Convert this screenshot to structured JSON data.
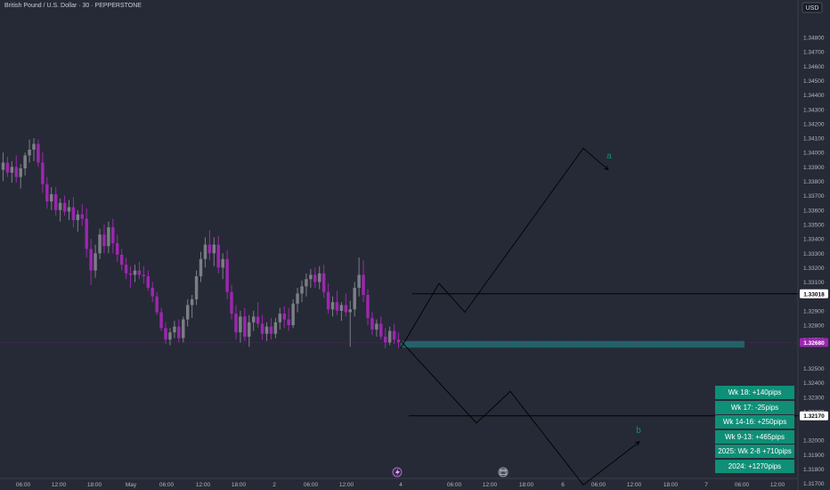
{
  "header": {
    "symbol_title": "British Pound / U.S. Dollar · 30 · PEPPERSTONE"
  },
  "currency_button": {
    "label": "USD"
  },
  "price_axis": {
    "ticks": [
      "1.34800",
      "1.34700",
      "1.34600",
      "1.34500",
      "1.34400",
      "1.34300",
      "1.34200",
      "1.34100",
      "1.34000",
      "1.33900",
      "1.33800",
      "1.33700",
      "1.33600",
      "1.33500",
      "1.33400",
      "1.33300",
      "1.33200",
      "1.33100",
      "1.33000",
      "1.32900",
      "1.32800",
      "1.32700",
      "1.32500",
      "1.32400",
      "1.32300",
      "1.32200",
      "1.32000",
      "1.31900",
      "1.31800",
      "1.31700"
    ],
    "markers": [
      {
        "value": "1.33018",
        "color": "#ffffff",
        "text_color": "#000000"
      },
      {
        "value": "1.32680",
        "color": "#9c27b0",
        "text_color": "#ffffff"
      },
      {
        "value": "1.32170",
        "color": "#ffffff",
        "text_color": "#000000"
      }
    ]
  },
  "time_axis": {
    "labels": [
      "06:00",
      "12:00",
      "18:00",
      "May",
      "06:00",
      "12:00",
      "18:00",
      "2",
      "06:00",
      "12:00",
      "4",
      "06:00",
      "12:00",
      "18:00",
      "6",
      "06:00",
      "12:00",
      "18:00",
      "7",
      "06:00",
      "12:00"
    ]
  },
  "projection_labels": {
    "a": "a",
    "b": "b"
  },
  "stats": [
    "Wk 18: +140pips",
    "Wk 17: -25pips",
    "Wk 14-16: +250pips",
    "Wk 9-13: +465pips",
    "2025: Wk 2-8  +710pips",
    "2024: +1270pips"
  ],
  "colors": {
    "background": "#262a36",
    "bull_candle": "#7c7e86",
    "bear_candle": "#9c27b0",
    "zone": "#1e6f6f",
    "stat_box": "#0f8f77",
    "label_text": "#0f8f77",
    "projection_line": "#000000"
  },
  "icons": [
    "tradingview-bolt-icon",
    "calendar-event-icon"
  ],
  "chart_data": {
    "type": "candlestick",
    "series": "bull/bear candles, 30-minute",
    "ylim": [
      1.3165,
      1.349
    ],
    "last_price": 1.3268,
    "resistance_levels": [
      1.33018,
      1.3217
    ],
    "zone": [
      1.3265,
      1.3269
    ],
    "projection_a": [
      [
        450,
        1.3264
      ],
      [
        493,
        1.3309
      ],
      [
        522,
        1.3289
      ],
      [
        655,
        1.3403
      ],
      [
        683,
        1.3388
      ]
    ],
    "projection_b": [
      [
        450,
        1.3269
      ],
      [
        535,
        1.3212
      ],
      [
        573,
        1.3234
      ],
      [
        655,
        1.3169
      ],
      [
        718,
        1.3199
      ]
    ],
    "candles": [
      [
        1.3388,
        1.34,
        1.338,
        1.3393
      ],
      [
        1.3393,
        1.3397,
        1.3383,
        1.3386
      ],
      [
        1.3386,
        1.3394,
        1.3379,
        1.339
      ],
      [
        1.339,
        1.3398,
        1.3379,
        1.3383
      ],
      [
        1.3383,
        1.3392,
        1.3375,
        1.3389
      ],
      [
        1.3389,
        1.34,
        1.3384,
        1.3398
      ],
      [
        1.3398,
        1.3409,
        1.3393,
        1.3402
      ],
      [
        1.3402,
        1.341,
        1.3394,
        1.3406
      ],
      [
        1.3406,
        1.3409,
        1.339,
        1.3393
      ],
      [
        1.3393,
        1.34,
        1.3372,
        1.3378
      ],
      [
        1.3378,
        1.3383,
        1.3361,
        1.3366
      ],
      [
        1.3366,
        1.3376,
        1.336,
        1.3371
      ],
      [
        1.3371,
        1.3376,
        1.3356,
        1.336
      ],
      [
        1.336,
        1.3368,
        1.3352,
        1.3365
      ],
      [
        1.3365,
        1.337,
        1.3356,
        1.3359
      ],
      [
        1.3359,
        1.3367,
        1.3353,
        1.3362
      ],
      [
        1.3362,
        1.3369,
        1.3348,
        1.3353
      ],
      [
        1.3353,
        1.336,
        1.3345,
        1.3357
      ],
      [
        1.3357,
        1.3364,
        1.3349,
        1.3354
      ],
      [
        1.3354,
        1.3361,
        1.3327,
        1.3333
      ],
      [
        1.3333,
        1.334,
        1.3308,
        1.3318
      ],
      [
        1.3318,
        1.3336,
        1.3313,
        1.333
      ],
      [
        1.333,
        1.3347,
        1.3326,
        1.3343
      ],
      [
        1.3343,
        1.335,
        1.333,
        1.3335
      ],
      [
        1.3335,
        1.3352,
        1.333,
        1.3348
      ],
      [
        1.3348,
        1.3354,
        1.333,
        1.3337
      ],
      [
        1.3337,
        1.3343,
        1.3324,
        1.3329
      ],
      [
        1.3329,
        1.3333,
        1.3318,
        1.3322
      ],
      [
        1.3322,
        1.3327,
        1.3312,
        1.3316
      ],
      [
        1.3316,
        1.3321,
        1.3306,
        1.3315
      ],
      [
        1.3315,
        1.3322,
        1.331,
        1.3318
      ],
      [
        1.3318,
        1.3324,
        1.3312,
        1.3315
      ],
      [
        1.3315,
        1.3321,
        1.3309,
        1.3314
      ],
      [
        1.3314,
        1.3318,
        1.3304,
        1.3306
      ],
      [
        1.3306,
        1.331,
        1.3296,
        1.33
      ],
      [
        1.33,
        1.3303,
        1.3287,
        1.3289
      ],
      [
        1.3289,
        1.3292,
        1.3276,
        1.3278
      ],
      [
        1.3278,
        1.3282,
        1.3267,
        1.327
      ],
      [
        1.327,
        1.3278,
        1.3266,
        1.3275
      ],
      [
        1.3275,
        1.3283,
        1.3271,
        1.3279
      ],
      [
        1.3279,
        1.3284,
        1.3268,
        1.3271
      ],
      [
        1.3271,
        1.3286,
        1.3268,
        1.3284
      ],
      [
        1.3284,
        1.3298,
        1.3279,
        1.3294
      ],
      [
        1.3294,
        1.3301,
        1.3285,
        1.3298
      ],
      [
        1.3298,
        1.3318,
        1.3294,
        1.3314
      ],
      [
        1.3314,
        1.3331,
        1.331,
        1.3326
      ],
      [
        1.3326,
        1.3341,
        1.332,
        1.3336
      ],
      [
        1.3336,
        1.3346,
        1.3325,
        1.333
      ],
      [
        1.333,
        1.3341,
        1.3321,
        1.3336
      ],
      [
        1.3336,
        1.3342,
        1.3316,
        1.332
      ],
      [
        1.332,
        1.333,
        1.3312,
        1.3326
      ],
      [
        1.3326,
        1.3332,
        1.3298,
        1.3303
      ],
      [
        1.3303,
        1.3308,
        1.3284,
        1.3288
      ],
      [
        1.3288,
        1.3294,
        1.327,
        1.3275
      ],
      [
        1.3275,
        1.329,
        1.3268,
        1.3286
      ],
      [
        1.3286,
        1.3292,
        1.3269,
        1.3272
      ],
      [
        1.3272,
        1.3287,
        1.3265,
        1.3282
      ],
      [
        1.3282,
        1.329,
        1.3276,
        1.3286
      ],
      [
        1.3286,
        1.3296,
        1.3278,
        1.3281
      ],
      [
        1.3281,
        1.3287,
        1.327,
        1.3274
      ],
      [
        1.3274,
        1.3282,
        1.3269,
        1.3279
      ],
      [
        1.3279,
        1.3285,
        1.327,
        1.3274
      ],
      [
        1.3274,
        1.3285,
        1.3271,
        1.3282
      ],
      [
        1.3282,
        1.3292,
        1.3277,
        1.3288
      ],
      [
        1.3288,
        1.3293,
        1.3278,
        1.3284
      ],
      [
        1.3284,
        1.3292,
        1.3276,
        1.328
      ],
      [
        1.328,
        1.3298,
        1.3278,
        1.3295
      ],
      [
        1.3295,
        1.3306,
        1.3289,
        1.3302
      ],
      [
        1.3302,
        1.3311,
        1.3296,
        1.3307
      ],
      [
        1.3307,
        1.3316,
        1.33,
        1.3312
      ],
      [
        1.3312,
        1.3319,
        1.3306,
        1.3315
      ],
      [
        1.3315,
        1.332,
        1.3306,
        1.331
      ],
      [
        1.331,
        1.3321,
        1.3305,
        1.3316
      ],
      [
        1.3316,
        1.3322,
        1.3299,
        1.3303
      ],
      [
        1.3303,
        1.3309,
        1.3288,
        1.3291
      ],
      [
        1.3291,
        1.33,
        1.3286,
        1.3296
      ],
      [
        1.3296,
        1.3304,
        1.3287,
        1.329
      ],
      [
        1.329,
        1.3296,
        1.3283,
        1.3294
      ],
      [
        1.3294,
        1.3302,
        1.3286,
        1.3289
      ],
      [
        1.3289,
        1.3297,
        1.3265,
        1.3291
      ],
      [
        1.3291,
        1.331,
        1.3286,
        1.3306
      ],
      [
        1.3306,
        1.3327,
        1.33,
        1.3315
      ],
      [
        1.3315,
        1.3325,
        1.3296,
        1.3301
      ],
      [
        1.3301,
        1.3305,
        1.328,
        1.3285
      ],
      [
        1.3285,
        1.3289,
        1.3273,
        1.3277
      ],
      [
        1.3277,
        1.3284,
        1.3272,
        1.3281
      ],
      [
        1.3281,
        1.3286,
        1.327,
        1.3272
      ],
      [
        1.3272,
        1.3278,
        1.3264,
        1.3268
      ],
      [
        1.3268,
        1.3279,
        1.3266,
        1.3276
      ],
      [
        1.3276,
        1.3281,
        1.3267,
        1.327
      ],
      [
        1.327,
        1.3275,
        1.3264,
        1.3268
      ]
    ]
  }
}
